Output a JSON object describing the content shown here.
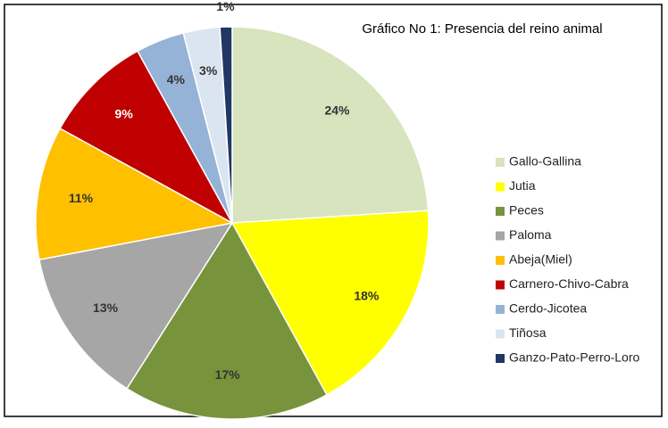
{
  "chart_data": {
    "type": "pie",
    "title": "Gráfico No 1: Presencia del reino  animal",
    "categories": [
      "Gallo-Gallina",
      "Jutia",
      "Peces",
      "Paloma",
      "Abeja(Miel)",
      "Carnero-Chivo-Cabra",
      "Cerdo-Jicotea",
      "Tiñosa",
      "Ganzo-Pato-Perro-Loro"
    ],
    "values": [
      24,
      18,
      17,
      13,
      11,
      9,
      4,
      3,
      1
    ],
    "value_labels": [
      "24%",
      "18%",
      "17%",
      "13%",
      "11%",
      "9%",
      "4%",
      "3%",
      "1%"
    ],
    "colors": [
      "#d7e4bd",
      "#ffff00",
      "#77933c",
      "#a6a6a6",
      "#ffc000",
      "#c00000",
      "#95b3d7",
      "#dbe5f1",
      "#1f3864"
    ],
    "legend": "right"
  }
}
